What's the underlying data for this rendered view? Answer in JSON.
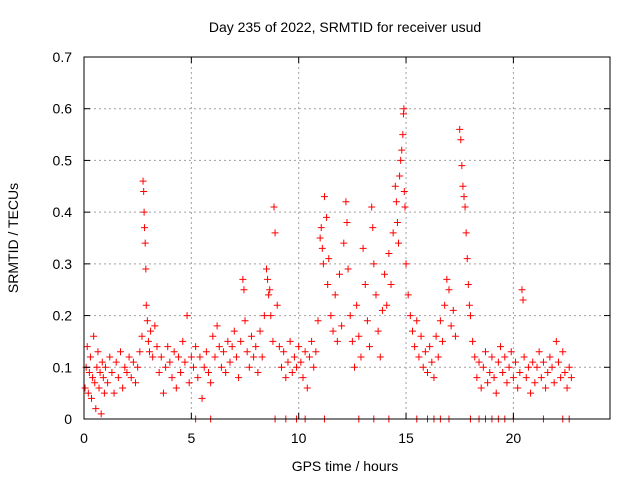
{
  "chart_data": {
    "type": "scatter",
    "title": "Day 235 of 2022, SRMTID for receiver usud",
    "xlabel": "GPS time / hours",
    "ylabel": "SRMTID / TECUs",
    "xlim": [
      0,
      24.5
    ],
    "ylim": [
      0,
      0.7
    ],
    "x_ticks": [
      "0",
      "5",
      "10",
      "15",
      "20"
    ],
    "x_tick_values": [
      0,
      5,
      10,
      15,
      20
    ],
    "y_ticks": [
      "0",
      "0.1",
      "0.2",
      "0.3",
      "0.4",
      "0.5",
      "0.6",
      "0.7"
    ],
    "y_tick_values": [
      0,
      0.1,
      0.2,
      0.3,
      0.4,
      0.5,
      0.6,
      0.7
    ],
    "grid": true,
    "marker": "+",
    "color": "#ff0000",
    "series": [
      {
        "name": "SRMTID",
        "points": [
          [
            0.05,
            0.06
          ],
          [
            0.1,
            0.1
          ],
          [
            0.15,
            0.14
          ],
          [
            0.2,
            0.05
          ],
          [
            0.25,
            0.09
          ],
          [
            0.3,
            0.12
          ],
          [
            0.35,
            0.04
          ],
          [
            0.4,
            0.08
          ],
          [
            0.45,
            0.16
          ],
          [
            0.5,
            0.07
          ],
          [
            0.55,
            0.02
          ],
          [
            0.6,
            0.1
          ],
          [
            0.65,
            0.13
          ],
          [
            0.7,
            0.06
          ],
          [
            0.75,
            0.09
          ],
          [
            0.8,
            0.01
          ],
          [
            0.85,
            0.11
          ],
          [
            0.9,
            0.08
          ],
          [
            0.95,
            0.05
          ],
          [
            1.0,
            0.1
          ],
          [
            1.1,
            0.07
          ],
          [
            1.2,
            0.12
          ],
          [
            1.3,
            0.09
          ],
          [
            1.4,
            0.05
          ],
          [
            1.5,
            0.11
          ],
          [
            1.6,
            0.08
          ],
          [
            1.7,
            0.13
          ],
          [
            1.8,
            0.06
          ],
          [
            1.9,
            0.1
          ],
          [
            2.0,
            0.09
          ],
          [
            2.1,
            0.12
          ],
          [
            2.2,
            0.08
          ],
          [
            2.3,
            0.11
          ],
          [
            2.4,
            0.07
          ],
          [
            2.5,
            0.1
          ],
          [
            2.6,
            0.13
          ],
          [
            2.7,
            0.16
          ],
          [
            2.75,
            0.46
          ],
          [
            2.78,
            0.44
          ],
          [
            2.8,
            0.4
          ],
          [
            2.82,
            0.37
          ],
          [
            2.85,
            0.34
          ],
          [
            2.88,
            0.29
          ],
          [
            2.9,
            0.22
          ],
          [
            2.95,
            0.19
          ],
          [
            3.0,
            0.15
          ],
          [
            3.05,
            0.13
          ],
          [
            3.1,
            0.17
          ],
          [
            3.2,
            0.12
          ],
          [
            3.3,
            0.18
          ],
          [
            3.4,
            0.14
          ],
          [
            3.5,
            0.09
          ],
          [
            3.6,
            0.12
          ],
          [
            3.7,
            0.05
          ],
          [
            3.8,
            0.1
          ],
          [
            3.9,
            0.14
          ],
          [
            4.0,
            0.11
          ],
          [
            4.1,
            0.08
          ],
          [
            4.2,
            0.13
          ],
          [
            4.3,
            0.06
          ],
          [
            4.4,
            0.12
          ],
          [
            4.5,
            0.09
          ],
          [
            4.6,
            0.15
          ],
          [
            4.7,
            0.11
          ],
          [
            4.8,
            0.2
          ],
          [
            4.9,
            0.07
          ],
          [
            5.0,
            0.12
          ],
          [
            5.1,
            0.1
          ],
          [
            5.2,
            0.14
          ],
          [
            5.3,
            0.08
          ],
          [
            5.4,
            0.12
          ],
          [
            5.5,
            0.04
          ],
          [
            5.6,
            0.1
          ],
          [
            5.7,
            0.13
          ],
          [
            5.8,
            0.09
          ],
          [
            5.9,
            0.07
          ],
          [
            6.0,
            0.16
          ],
          [
            6.1,
            0.12
          ],
          [
            6.2,
            0.18
          ],
          [
            6.3,
            0.14
          ],
          [
            6.4,
            0.1
          ],
          [
            6.5,
            0.13
          ],
          [
            6.6,
            0.09
          ],
          [
            6.7,
            0.15
          ],
          [
            6.8,
            0.11
          ],
          [
            6.9,
            0.14
          ],
          [
            7.0,
            0.17
          ],
          [
            7.1,
            0.12
          ],
          [
            7.2,
            0.08
          ],
          [
            7.3,
            0.15
          ],
          [
            7.4,
            0.27
          ],
          [
            7.45,
            0.25
          ],
          [
            7.5,
            0.19
          ],
          [
            7.6,
            0.13
          ],
          [
            7.7,
            0.1
          ],
          [
            7.8,
            0.16
          ],
          [
            7.9,
            0.12
          ],
          [
            8.0,
            0.14
          ],
          [
            8.1,
            0.09
          ],
          [
            8.2,
            0.17
          ],
          [
            8.3,
            0.12
          ],
          [
            8.4,
            0.2
          ],
          [
            8.5,
            0.29
          ],
          [
            8.55,
            0.27
          ],
          [
            8.6,
            0.24
          ],
          [
            8.65,
            0.25
          ],
          [
            8.7,
            0.2
          ],
          [
            8.8,
            0.15
          ],
          [
            8.85,
            0.41
          ],
          [
            8.9,
            0.36
          ],
          [
            9.0,
            0.22
          ],
          [
            9.1,
            0.14
          ],
          [
            9.2,
            0.1
          ],
          [
            9.3,
            0.13
          ],
          [
            9.4,
            0.08
          ],
          [
            9.5,
            0.11
          ],
          [
            9.6,
            0.15
          ],
          [
            9.7,
            0.09
          ],
          [
            9.8,
            0.12
          ],
          [
            9.9,
            0.1
          ],
          [
            10.0,
            0.14
          ],
          [
            10.1,
            0.11
          ],
          [
            10.2,
            0.08
          ],
          [
            10.3,
            0.13
          ],
          [
            10.4,
            0.06
          ],
          [
            10.5,
            0.12
          ],
          [
            10.6,
            0.15
          ],
          [
            10.7,
            0.1
          ],
          [
            10.8,
            0.13
          ],
          [
            10.9,
            0.19
          ],
          [
            11.0,
            0.35
          ],
          [
            11.05,
            0.37
          ],
          [
            11.1,
            0.33
          ],
          [
            11.15,
            0.3
          ],
          [
            11.2,
            0.43
          ],
          [
            11.3,
            0.39
          ],
          [
            11.35,
            0.26
          ],
          [
            11.4,
            0.31
          ],
          [
            11.5,
            0.2
          ],
          [
            11.6,
            0.17
          ],
          [
            11.7,
            0.24
          ],
          [
            11.8,
            0.15
          ],
          [
            11.9,
            0.28
          ],
          [
            12.0,
            0.18
          ],
          [
            12.1,
            0.34
          ],
          [
            12.2,
            0.42
          ],
          [
            12.25,
            0.38
          ],
          [
            12.3,
            0.29
          ],
          [
            12.4,
            0.2
          ],
          [
            12.5,
            0.15
          ],
          [
            12.6,
            0.1
          ],
          [
            12.7,
            0.22
          ],
          [
            12.8,
            0.16
          ],
          [
            12.9,
            0.12
          ],
          [
            13.0,
            0.33
          ],
          [
            13.1,
            0.26
          ],
          [
            13.2,
            0.19
          ],
          [
            13.3,
            0.14
          ],
          [
            13.4,
            0.41
          ],
          [
            13.45,
            0.37
          ],
          [
            13.5,
            0.3
          ],
          [
            13.6,
            0.24
          ],
          [
            13.7,
            0.17
          ],
          [
            13.8,
            0.12
          ],
          [
            13.9,
            0.21
          ],
          [
            14.0,
            0.28
          ],
          [
            14.1,
            0.22
          ],
          [
            14.2,
            0.32
          ],
          [
            14.3,
            0.26
          ],
          [
            14.4,
            0.36
          ],
          [
            14.5,
            0.45
          ],
          [
            14.55,
            0.42
          ],
          [
            14.6,
            0.38
          ],
          [
            14.65,
            0.34
          ],
          [
            14.7,
            0.47
          ],
          [
            14.75,
            0.5
          ],
          [
            14.8,
            0.52
          ],
          [
            14.85,
            0.55
          ],
          [
            14.88,
            0.59
          ],
          [
            14.9,
            0.6
          ],
          [
            14.92,
            0.44
          ],
          [
            14.95,
            0.41
          ],
          [
            15.0,
            0.3
          ],
          [
            15.1,
            0.24
          ],
          [
            15.2,
            0.2
          ],
          [
            15.3,
            0.17
          ],
          [
            15.4,
            0.14
          ],
          [
            15.5,
            0.19
          ],
          [
            15.6,
            0.12
          ],
          [
            15.7,
            0.16
          ],
          [
            15.8,
            0.1
          ],
          [
            15.9,
            0.13
          ],
          [
            16.0,
            0.09
          ],
          [
            16.1,
            0.14
          ],
          [
            16.2,
            0.11
          ],
          [
            16.3,
            0.08
          ],
          [
            16.4,
            0.16
          ],
          [
            16.5,
            0.12
          ],
          [
            16.6,
            0.19
          ],
          [
            16.7,
            0.15
          ],
          [
            16.8,
            0.22
          ],
          [
            16.9,
            0.27
          ],
          [
            17.0,
            0.25
          ],
          [
            17.1,
            0.18
          ],
          [
            17.2,
            0.21
          ],
          [
            17.3,
            0.16
          ],
          [
            17.5,
            0.56
          ],
          [
            17.55,
            0.54
          ],
          [
            17.6,
            0.49
          ],
          [
            17.65,
            0.45
          ],
          [
            17.7,
            0.43
          ],
          [
            17.75,
            0.41
          ],
          [
            17.8,
            0.36
          ],
          [
            17.85,
            0.31
          ],
          [
            17.9,
            0.26
          ],
          [
            17.95,
            0.22
          ],
          [
            18.0,
            0.2
          ],
          [
            18.1,
            0.15
          ],
          [
            18.2,
            0.12
          ],
          [
            18.3,
            0.08
          ],
          [
            18.4,
            0.11
          ],
          [
            18.5,
            0.06
          ],
          [
            18.6,
            0.1
          ],
          [
            18.7,
            0.13
          ],
          [
            18.8,
            0.07
          ],
          [
            18.9,
            0.09
          ],
          [
            19.0,
            0.12
          ],
          [
            19.1,
            0.08
          ],
          [
            19.2,
            0.05
          ],
          [
            19.3,
            0.11
          ],
          [
            19.4,
            0.14
          ],
          [
            19.5,
            0.09
          ],
          [
            19.6,
            0.12
          ],
          [
            19.7,
            0.07
          ],
          [
            19.8,
            0.1
          ],
          [
            19.9,
            0.13
          ],
          [
            20.0,
            0.08
          ],
          [
            20.1,
            0.11
          ],
          [
            20.2,
            0.06
          ],
          [
            20.3,
            0.09
          ],
          [
            20.4,
            0.25
          ],
          [
            20.45,
            0.23
          ],
          [
            20.5,
            0.12
          ],
          [
            20.6,
            0.08
          ],
          [
            20.7,
            0.1
          ],
          [
            20.8,
            0.05
          ],
          [
            20.9,
            0.11
          ],
          [
            21.0,
            0.07
          ],
          [
            21.1,
            0.1
          ],
          [
            21.2,
            0.13
          ],
          [
            21.3,
            0.08
          ],
          [
            21.4,
            0.11
          ],
          [
            21.5,
            0.06
          ],
          [
            21.6,
            0.09
          ],
          [
            21.7,
            0.12
          ],
          [
            21.8,
            0.1
          ],
          [
            21.9,
            0.07
          ],
          [
            22.0,
            0.15
          ],
          [
            22.1,
            0.11
          ],
          [
            22.2,
            0.08
          ],
          [
            22.3,
            0.13
          ],
          [
            22.4,
            0.09
          ],
          [
            22.5,
            0.06
          ],
          [
            22.6,
            0.1
          ],
          [
            22.7,
            0.08
          ],
          [
            5.2,
            0.0
          ],
          [
            5.9,
            0.0
          ],
          [
            8.9,
            0.0
          ],
          [
            9.4,
            0.0
          ],
          [
            9.9,
            0.0
          ],
          [
            10.3,
            0.0
          ],
          [
            11.2,
            0.0
          ],
          [
            12.8,
            0.0
          ],
          [
            13.5,
            0.0
          ],
          [
            14.2,
            0.0
          ],
          [
            15.5,
            0.0
          ],
          [
            16.0,
            0.0
          ],
          [
            16.3,
            0.0
          ],
          [
            16.6,
            0.0
          ],
          [
            17.0,
            0.0
          ],
          [
            18.0,
            0.0
          ],
          [
            18.4,
            0.0
          ],
          [
            18.7,
            0.0
          ],
          [
            19.0,
            0.0
          ],
          [
            19.3,
            0.0
          ],
          [
            19.6,
            0.0
          ],
          [
            20.0,
            0.0
          ],
          [
            21.4,
            0.0
          ],
          [
            22.3,
            0.0
          ],
          [
            22.6,
            0.0
          ]
        ]
      }
    ]
  }
}
